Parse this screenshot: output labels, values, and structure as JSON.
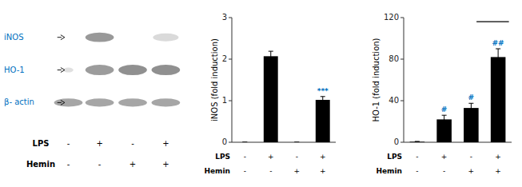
{
  "chart_data": [
    {
      "type": "blot",
      "row_labels": [
        "iNOS",
        "HO-1",
        "β- actin"
      ],
      "color": "#0070C0",
      "category_rows": [
        {
          "name": "LPS",
          "labels": [
            "-",
            "+",
            "-",
            "+"
          ]
        },
        {
          "name": "Hemin",
          "labels": [
            "-",
            "-",
            "+",
            "+"
          ]
        }
      ]
    },
    {
      "type": "bar",
      "values": [
        0.0,
        2.07,
        0.0,
        1.02
      ],
      "errors": [
        0.0,
        0.12,
        0.0,
        0.08
      ],
      "color": "#000000",
      "ylim": [
        0,
        3
      ],
      "yticks": [
        0,
        1,
        2,
        3
      ],
      "ylabel": "iNOS (fold induction)",
      "tick_labels": "y",
      "annotations": [
        {
          "index": 3,
          "text": "***",
          "color": "#0070C0"
        }
      ],
      "category_rows": [
        {
          "name": "LPS",
          "labels": [
            "-",
            "+",
            "-",
            "+"
          ]
        },
        {
          "name": "Hemin",
          "labels": [
            "-",
            "-",
            "+",
            "+"
          ]
        }
      ]
    },
    {
      "type": "bar",
      "values": [
        0.5,
        22.0,
        33.0,
        82.0
      ],
      "errors": [
        0.3,
        4.0,
        4.5,
        8.0
      ],
      "color": "#000000",
      "ylim": [
        0,
        120
      ],
      "yticks": [
        0,
        40,
        80,
        120
      ],
      "ylabel": "HO-1 (fold induction)",
      "tick_labels": "y",
      "annotations": [
        {
          "index": 1,
          "text": "#",
          "color": "#0070C0"
        },
        {
          "index": 2,
          "text": "#",
          "color": "#0070C0"
        },
        {
          "index": 3,
          "text": "##",
          "color": "#0070C0"
        }
      ],
      "reference_line": {
        "value": 116
      },
      "category_rows": [
        {
          "name": "LPS",
          "labels": [
            "-",
            "+",
            "-",
            "+"
          ]
        },
        {
          "name": "Hemin",
          "labels": [
            "-",
            "-",
            "+",
            "+"
          ]
        }
      ]
    }
  ]
}
